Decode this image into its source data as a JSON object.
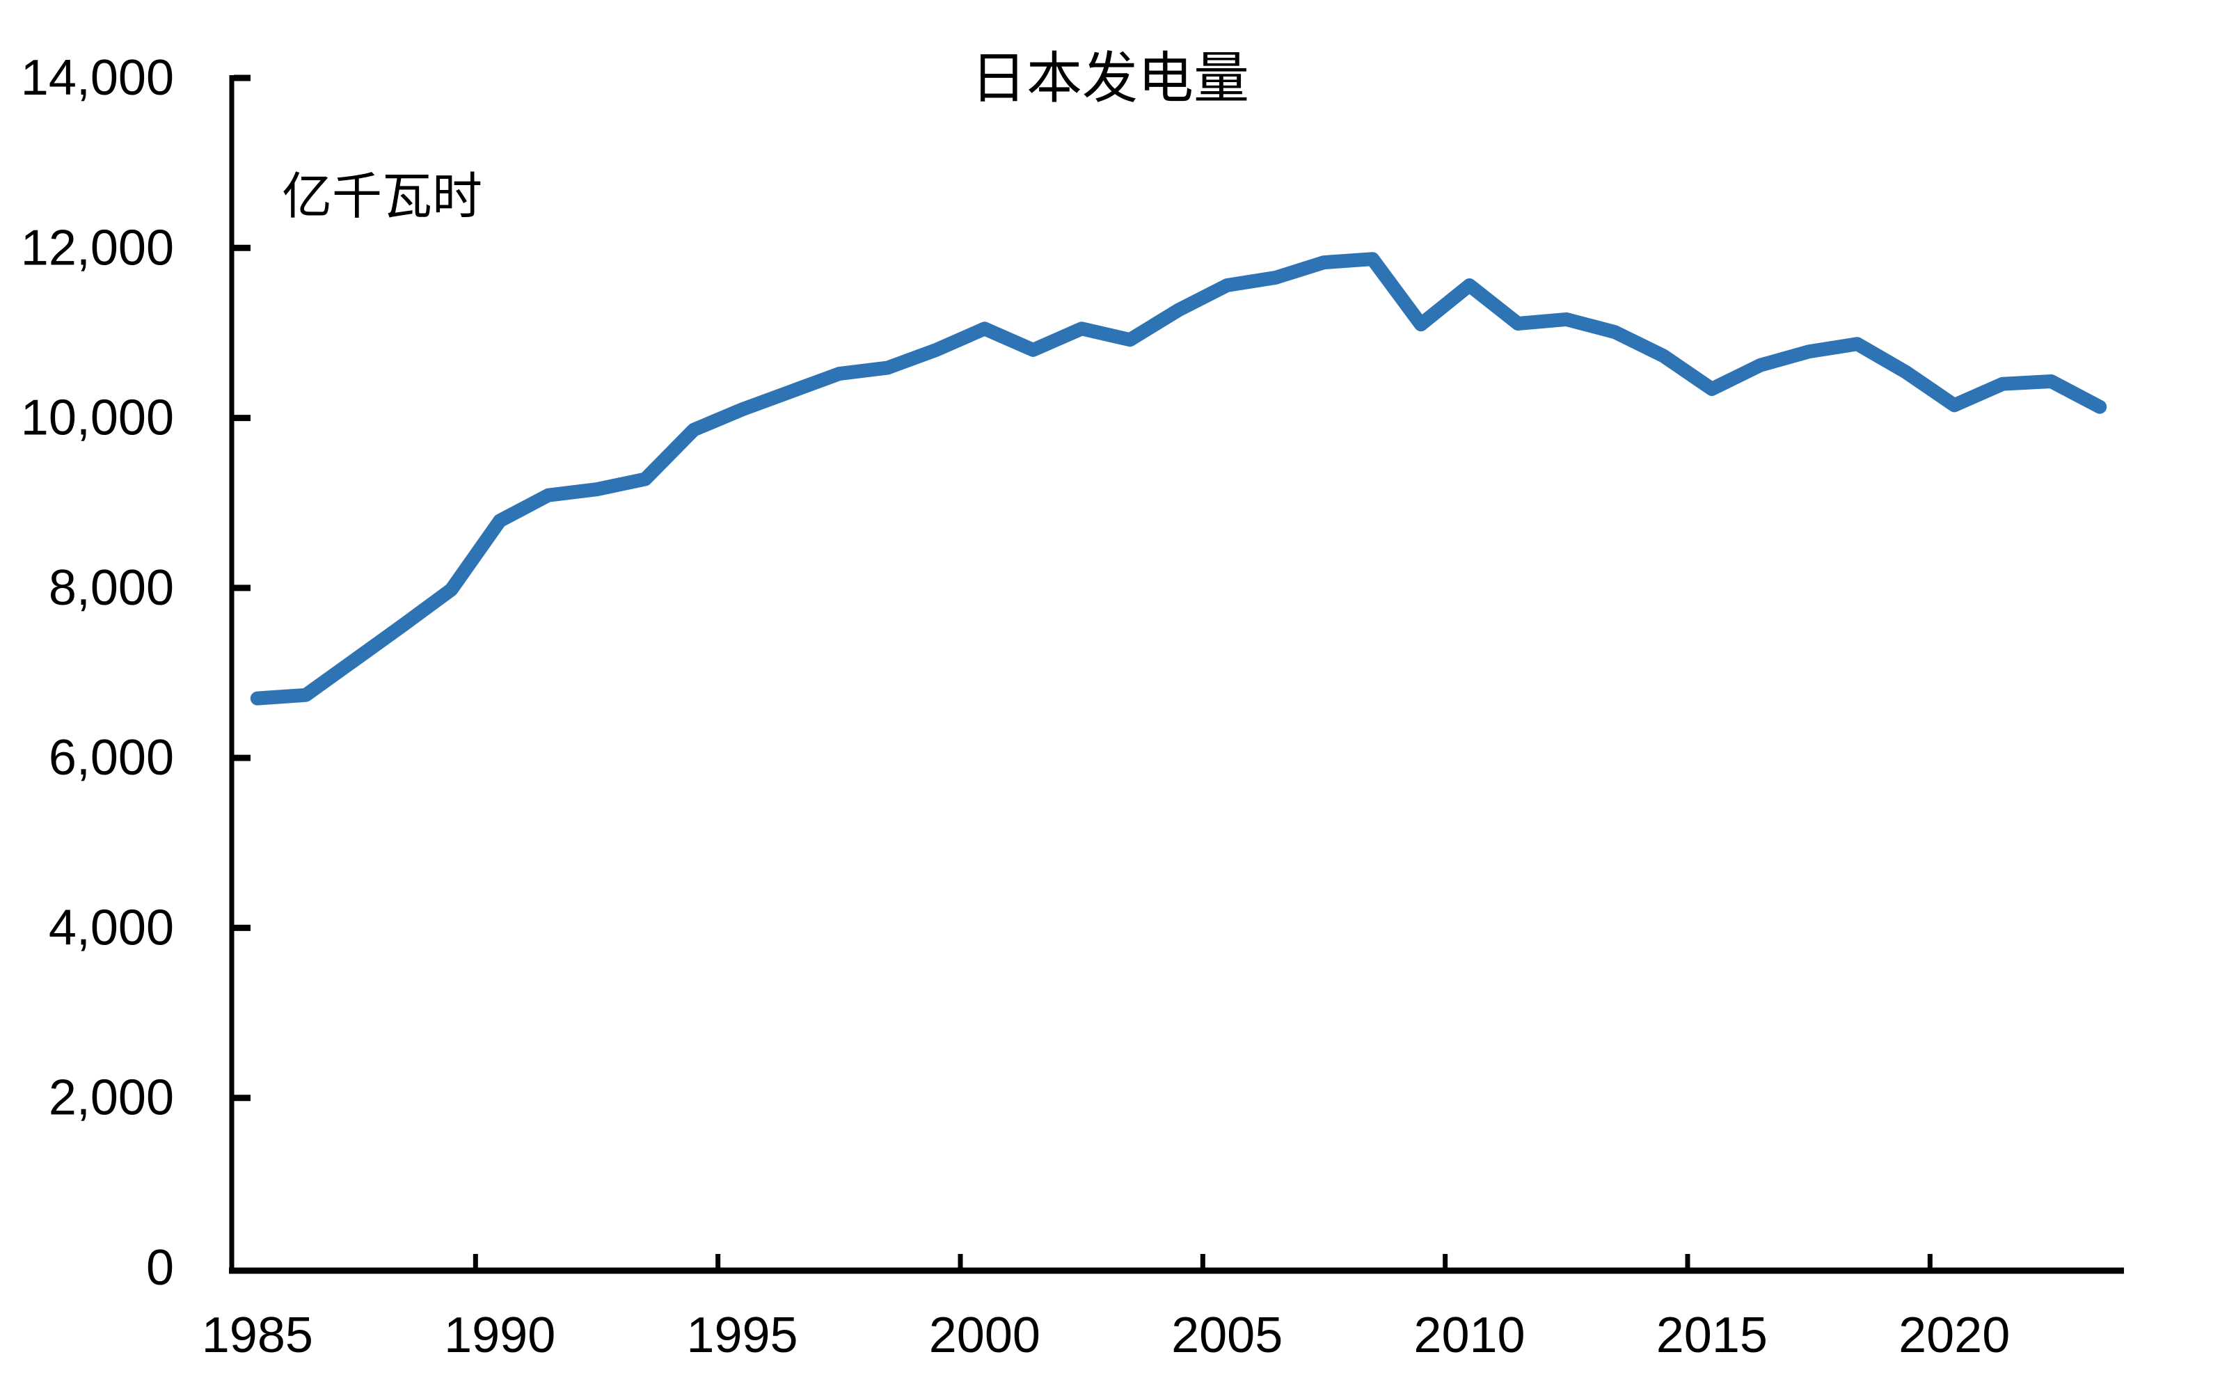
{
  "page": {
    "background": "#FFFFFF"
  },
  "chart_data": {
    "type": "line",
    "title": "日本发电量",
    "ylabel": "亿千瓦时",
    "xlabel": "",
    "x": [
      1985,
      1986,
      1987,
      1988,
      1989,
      1990,
      1991,
      1992,
      1993,
      1994,
      1995,
      1996,
      1997,
      1998,
      1999,
      2000,
      2001,
      2002,
      2003,
      2004,
      2005,
      2006,
      2007,
      2008,
      2009,
      2010,
      2011,
      2012,
      2013,
      2014,
      2015,
      2016,
      2017,
      2018,
      2019,
      2020,
      2021,
      2022,
      2023
    ],
    "series": [
      {
        "name": "日本发电量",
        "color": "#2E74B5",
        "values": [
          6700,
          6740,
          7150,
          7560,
          7980,
          8790,
          9090,
          9160,
          9280,
          9860,
          10100,
          10310,
          10520,
          10590,
          10800,
          11050,
          10800,
          11050,
          10920,
          11270,
          11560,
          11650,
          11830,
          11870,
          11100,
          11560,
          11110,
          11160,
          11010,
          10730,
          10340,
          10620,
          10780,
          10870,
          10540,
          10150,
          10400,
          10430,
          10130
        ]
      }
    ],
    "ylim": [
      0,
      14000
    ],
    "ytick_values": [
      0,
      2000,
      4000,
      6000,
      8000,
      10000,
      12000,
      14000
    ],
    "ytick_labels": [
      "0",
      "2,000",
      "4,000",
      "6,000",
      "8,000",
      "10,000",
      "12,000",
      "14,000"
    ],
    "xtick_years": [
      1985,
      1990,
      1995,
      2000,
      2005,
      2010,
      2015,
      2020
    ],
    "xtick_labels": [
      "1985",
      "1990",
      "1995",
      "2000",
      "2005",
      "2010",
      "2015",
      "2020"
    ],
    "grid": false,
    "legend_position": "none",
    "axis_color": "#000000",
    "line_width": 20
  }
}
